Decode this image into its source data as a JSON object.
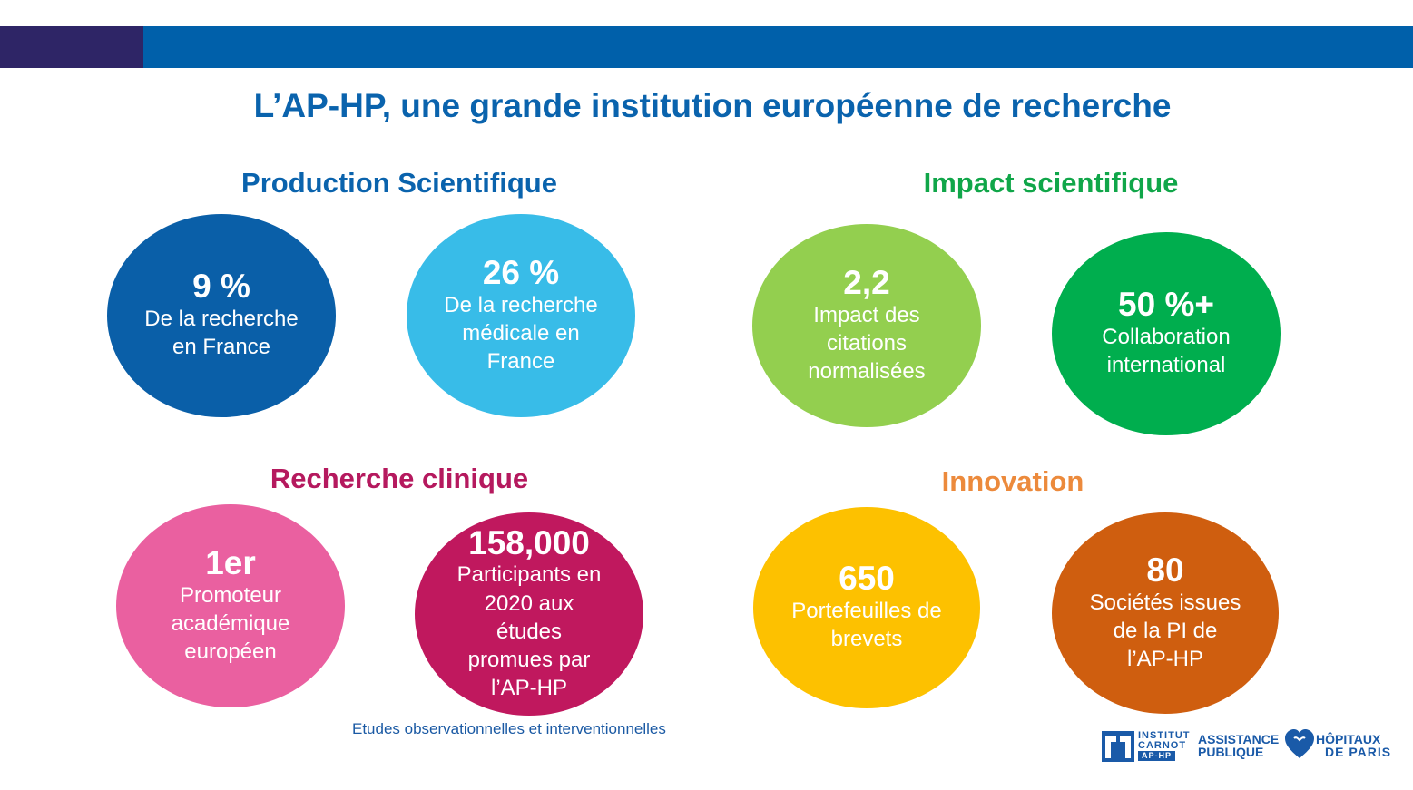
{
  "colors": {
    "bar_dark": "#2e2566",
    "bar_blue": "#0060aa",
    "title": "#0a63ad",
    "production": "#0a63ad",
    "impact": "#10a649",
    "clinique": "#b5195e",
    "innovation": "#ec8a3c",
    "footnote": "#1b5aa4",
    "logo_blue": "#1a5aa8"
  },
  "title": "L’AP-HP, une grande institution européenne de recherche",
  "sections": {
    "production": {
      "title": "Production Scientifique",
      "items": [
        {
          "value": "9 %",
          "desc": "De la recherche en France",
          "color": "#0a5fa8"
        },
        {
          "value": "26 %",
          "desc": "De la recherche médicale en France",
          "color": "#38bce8"
        }
      ]
    },
    "impact": {
      "title": "Impact scientifique",
      "items": [
        {
          "value": "2,2",
          "desc": "Impact des citations normalisées",
          "color": "#93cf4f"
        },
        {
          "value": "50 %+",
          "desc": "Collaboration international",
          "color": "#00ae4e"
        }
      ]
    },
    "clinique": {
      "title": "Recherche clinique",
      "items": [
        {
          "value": "1er",
          "desc": "Promoteur académique européen",
          "color": "#ea60a0"
        },
        {
          "value": "158,000",
          "desc": "Participants en 2020 aux études promues par l’AP-HP",
          "color": "#c0185e"
        }
      ]
    },
    "innovation": {
      "title": "Innovation",
      "items": [
        {
          "value": "650",
          "desc": "Portefeuilles de brevets",
          "color": "#fdc100"
        },
        {
          "value": "80",
          "desc": "Sociétés issues de la PI de l’AP-HP",
          "color": "#cf5e0f"
        }
      ]
    }
  },
  "footnote": "Etudes observationnelles et interventionnelles",
  "logos": {
    "carnot_line1": "INSTITUT",
    "carnot_line2": "CARNOT",
    "carnot_line3": "AP-HP",
    "aphp_left_line1": "ASSISTANCE",
    "aphp_left_line2": "PUBLIQUE",
    "aphp_right_line1": "HÔPITAUX",
    "aphp_right_line2": "DE PARIS"
  }
}
